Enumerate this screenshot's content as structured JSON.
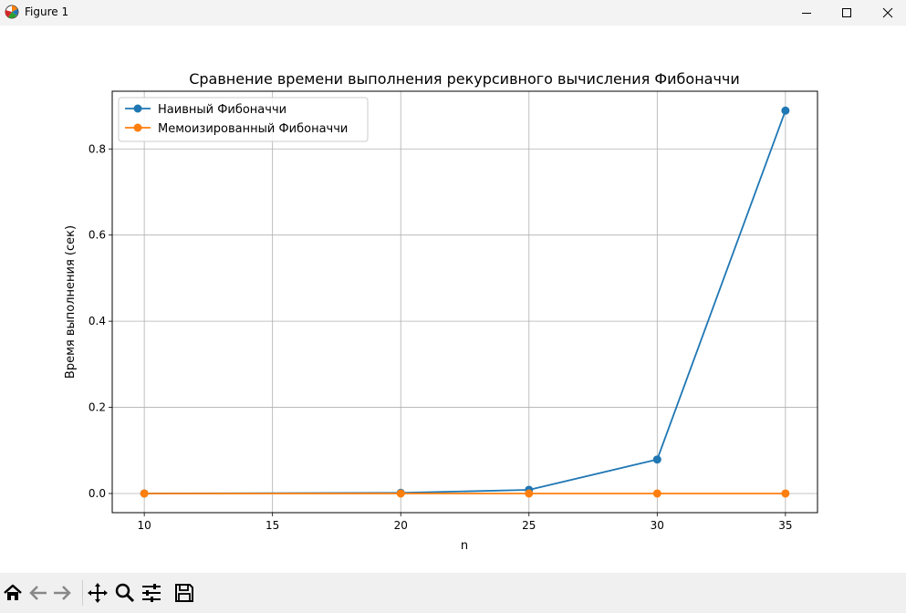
{
  "window": {
    "title": "Figure 1",
    "controls": [
      "minimize",
      "maximize",
      "close"
    ]
  },
  "toolbar": {
    "icons": [
      "home-icon",
      "back-arrow-icon",
      "forward-arrow-icon",
      "pan-icon",
      "zoom-icon",
      "configure-subplots-icon",
      "save-icon"
    ]
  },
  "chart_data": {
    "type": "line",
    "title": "Сравнение времени выполнения рекурсивного вычисления Фибоначчи",
    "xlabel": "n",
    "ylabel": "Время выполнения (сек)",
    "x": [
      10,
      20,
      25,
      30,
      35
    ],
    "xlim": [
      8.75,
      36.25
    ],
    "ylim": [
      -0.0445,
      0.934
    ],
    "xticks": [
      10,
      15,
      20,
      25,
      30,
      35
    ],
    "yticks": [
      0.0,
      0.2,
      0.4,
      0.6,
      0.8
    ],
    "ytick_labels": [
      "0.0",
      "0.2",
      "0.4",
      "0.6",
      "0.8"
    ],
    "grid": true,
    "legend_position": "top-left",
    "series": [
      {
        "name": "Наивный Фибоначчи",
        "color": "#1f77b4",
        "marker": "circle",
        "values": [
          0.0001,
          0.0015,
          0.0085,
          0.079,
          0.889
        ]
      },
      {
        "name": "Мемоизированный Фибоначчи",
        "color": "#ff7f0e",
        "marker": "circle",
        "values": [
          0.0,
          0.0,
          0.0,
          0.0,
          0.0
        ]
      }
    ]
  }
}
